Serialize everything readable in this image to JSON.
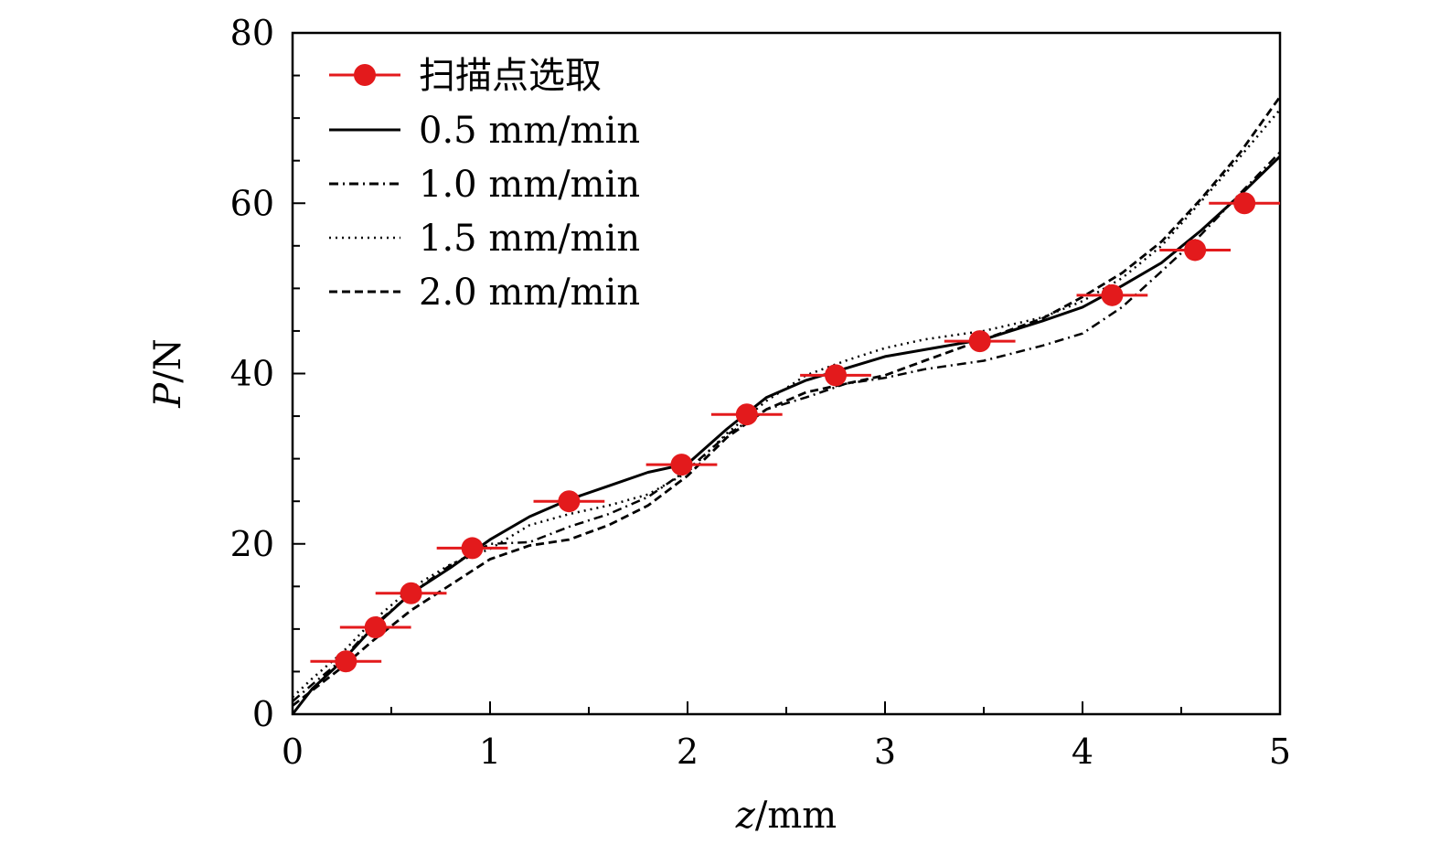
{
  "chart_data": {
    "type": "line",
    "title": "",
    "xlabel_var": "z",
    "xlabel_unit": "/mm",
    "ylabel_var": "P",
    "ylabel_unit": "/N",
    "xlim": [
      0,
      5
    ],
    "ylim": [
      0,
      80
    ],
    "xticks": [
      "0",
      "1",
      "2",
      "3",
      "4",
      "5"
    ],
    "yticks": [
      "0",
      "20",
      "40",
      "60",
      "80"
    ],
    "xtick_values": [
      0,
      1,
      2,
      3,
      4,
      5
    ],
    "ytick_values": [
      0,
      20,
      40,
      60,
      80
    ],
    "legend_placement": "top-left",
    "grid": false,
    "series": [
      {
        "name": "0.5 mm/min",
        "style": "solid",
        "color": "#000000",
        "x": [
          0,
          0.1,
          0.25,
          0.4,
          0.6,
          0.8,
          1.0,
          1.2,
          1.4,
          1.6,
          1.8,
          2.0,
          2.2,
          2.4,
          2.6,
          2.8,
          3.0,
          3.2,
          3.5,
          3.8,
          4.0,
          4.2,
          4.4,
          4.6,
          4.8,
          5.0
        ],
        "y": [
          0,
          3,
          6.2,
          10,
          14.2,
          17.2,
          20.5,
          23.2,
          25.2,
          26.8,
          28.4,
          29.4,
          33.5,
          37.2,
          39.2,
          40.6,
          42,
          42.8,
          44,
          46.2,
          47.8,
          50.3,
          53,
          56.8,
          61,
          65.5
        ]
      },
      {
        "name": "1.0 mm/min",
        "style": "dashdot",
        "color": "#000000",
        "x": [
          0,
          0.1,
          0.25,
          0.4,
          0.6,
          0.8,
          1.0,
          1.2,
          1.4,
          1.6,
          1.8,
          2.0,
          2.2,
          2.4,
          2.6,
          2.8,
          3.0,
          3.2,
          3.5,
          3.8,
          4.0,
          4.2,
          4.4,
          4.6,
          4.8,
          5.0
        ],
        "y": [
          1.5,
          3.5,
          6.4,
          10.2,
          14.2,
          17.5,
          20,
          20.2,
          22,
          23.5,
          25.5,
          28.7,
          32.8,
          35.8,
          37.2,
          38.8,
          39.5,
          40.5,
          41.5,
          43.3,
          44.7,
          47.8,
          52,
          56.3,
          61.2,
          66
        ]
      },
      {
        "name": "1.5 mm/min",
        "style": "dotted",
        "color": "#000000",
        "x": [
          0,
          0.1,
          0.25,
          0.4,
          0.6,
          0.8,
          1.0,
          1.2,
          1.4,
          1.6,
          1.8,
          2.0,
          2.2,
          2.4,
          2.6,
          2.8,
          3.0,
          3.2,
          3.5,
          3.8,
          4.0,
          4.2,
          4.4,
          4.6,
          4.8,
          5.0
        ],
        "y": [
          2,
          4.2,
          7.2,
          10.8,
          14.8,
          17.6,
          19.4,
          22.2,
          23.5,
          24.5,
          25.8,
          28.4,
          33,
          36.8,
          39.8,
          41.5,
          43,
          44,
          45,
          46.6,
          48.5,
          51.2,
          55,
          60.2,
          65.5,
          71
        ]
      },
      {
        "name": "2.0 mm/min",
        "style": "dashed",
        "color": "#000000",
        "x": [
          0,
          0.1,
          0.25,
          0.4,
          0.6,
          0.8,
          1.0,
          1.2,
          1.4,
          1.6,
          1.8,
          2.0,
          2.2,
          2.4,
          2.6,
          2.8,
          3.0,
          3.2,
          3.5,
          3.8,
          4.0,
          4.2,
          4.4,
          4.6,
          4.8,
          5.0
        ],
        "y": [
          1,
          2.8,
          5.5,
          8.5,
          12.2,
          15.2,
          18.2,
          19.8,
          20.5,
          22.2,
          24.5,
          28,
          32.5,
          35.8,
          37.8,
          38.8,
          39.8,
          41.5,
          44,
          46.5,
          49,
          51.8,
          55.5,
          60.5,
          66,
          72.5
        ]
      }
    ],
    "scan_points": {
      "name": "扫描点选取",
      "color": "#e31a1c",
      "x": [
        0.27,
        0.42,
        0.6,
        0.91,
        1.4,
        1.97,
        2.3,
        2.75,
        3.48,
        4.15,
        4.57,
        4.82
      ],
      "y": [
        6.2,
        10.2,
        14.2,
        19.5,
        25,
        29.3,
        35.2,
        39.8,
        43.8,
        49.2,
        54.5,
        60
      ],
      "xerr": [
        0.18,
        0.18,
        0.18,
        0.18,
        0.18,
        0.18,
        0.18,
        0.18,
        0.18,
        0.18,
        0.18,
        0.18
      ]
    }
  }
}
